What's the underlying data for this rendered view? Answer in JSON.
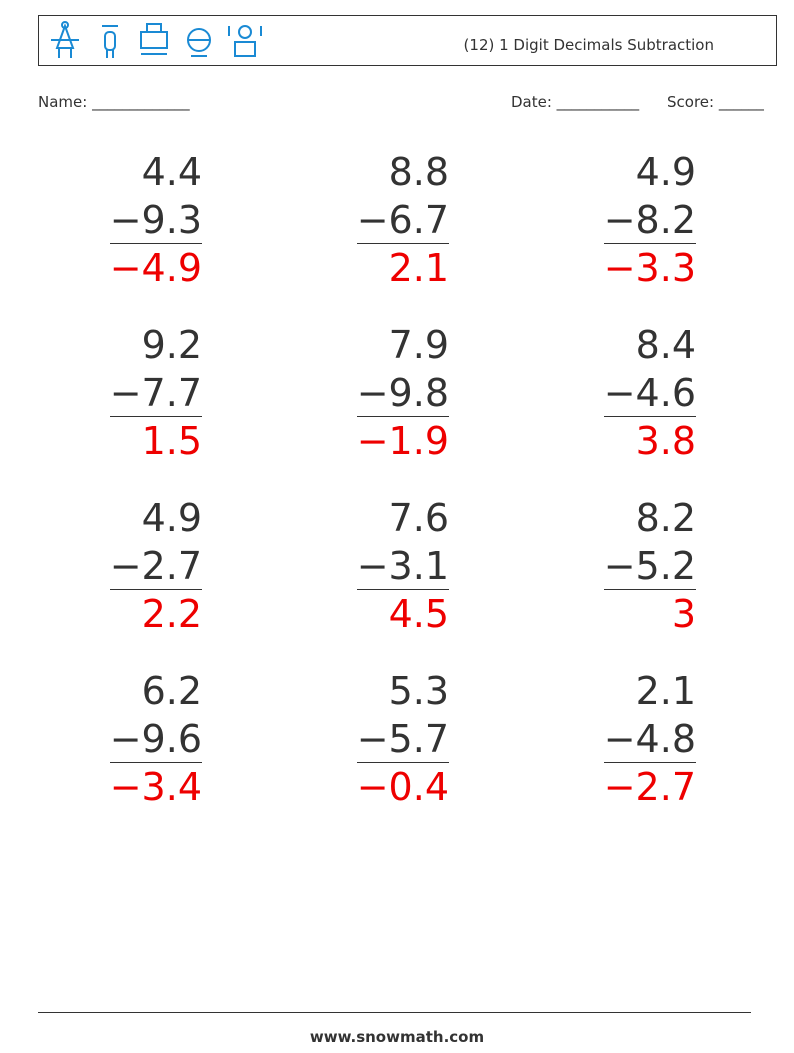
{
  "header": {
    "title": "(12) 1 Digit Decimals Subtraction"
  },
  "fields": {
    "name": "Name: _____________",
    "date": "Date: ___________",
    "score": "Score: ______"
  },
  "problems": [
    {
      "top": "4.4",
      "bottom": "−9.3",
      "answer": "−4.9"
    },
    {
      "top": "8.8",
      "bottom": "−6.7",
      "answer": "2.1"
    },
    {
      "top": "4.9",
      "bottom": "−8.2",
      "answer": "−3.3"
    },
    {
      "top": "9.2",
      "bottom": "−7.7",
      "answer": "1.5"
    },
    {
      "top": "7.9",
      "bottom": "−9.8",
      "answer": "−1.9"
    },
    {
      "top": "8.4",
      "bottom": "−4.6",
      "answer": "3.8"
    },
    {
      "top": "4.9",
      "bottom": "−2.7",
      "answer": "2.2"
    },
    {
      "top": "7.6",
      "bottom": "−3.1",
      "answer": "4.5"
    },
    {
      "top": "8.2",
      "bottom": "−5.2",
      "answer": "3"
    },
    {
      "top": "6.2",
      "bottom": "−9.6",
      "answer": "−3.4"
    },
    {
      "top": "5.3",
      "bottom": "−5.7",
      "answer": "−0.4"
    },
    {
      "top": "2.1",
      "bottom": "−4.8",
      "answer": "−2.7"
    }
  ],
  "footer": {
    "site": "www.snowmath.com"
  }
}
